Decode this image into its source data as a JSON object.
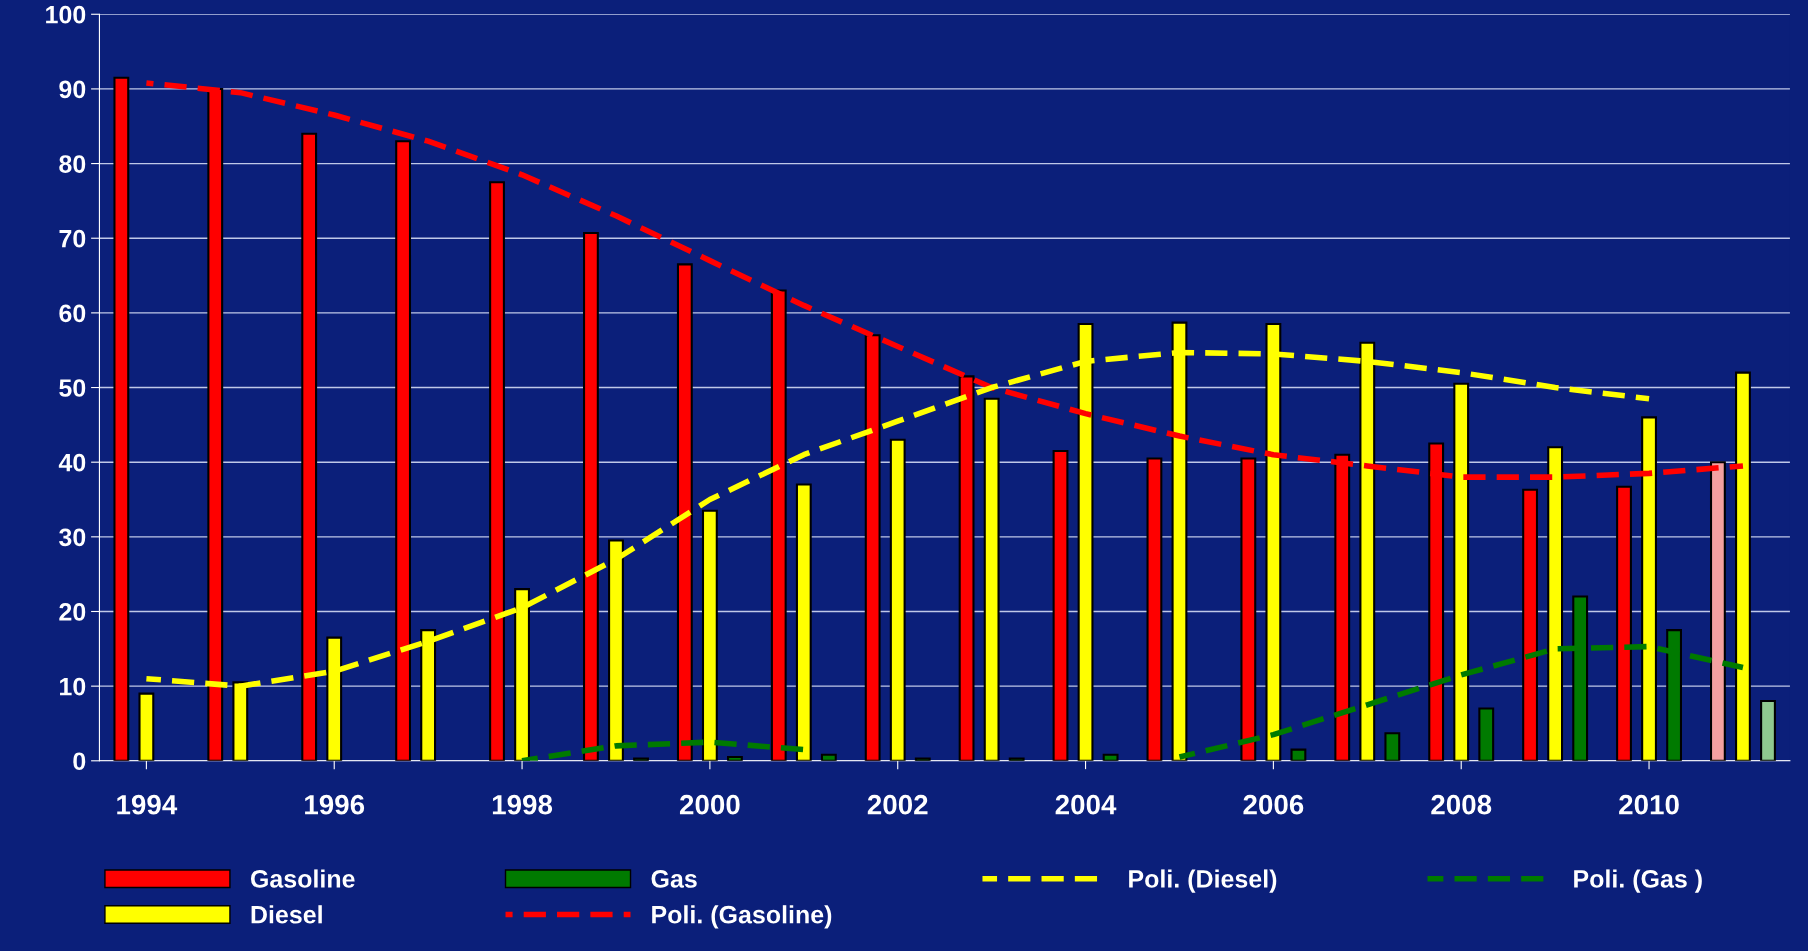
{
  "chart_data": {
    "type": "bar",
    "categories": [
      "1994",
      null,
      "1996",
      null,
      "1998",
      null,
      "2000",
      null,
      "2002",
      null,
      "2004",
      null,
      "2006",
      null,
      "2008",
      null,
      "2010",
      null
    ],
    "series": [
      {
        "name": "Gasoline",
        "color": "#ff0000",
        "colors": [
          "#ff0000",
          "#ff0000",
          "#ff0000",
          "#ff0000",
          "#ff0000",
          "#ff0000",
          "#ff0000",
          "#ff0000",
          "#ff0000",
          "#ff0000",
          "#ff0000",
          "#ff0000",
          "#ff0000",
          "#ff0000",
          "#ff0000",
          "#ff0000",
          "#ff0000",
          "#f4a0a0"
        ],
        "values": [
          91.5,
          90,
          84,
          83,
          77.5,
          70.7,
          66.5,
          63,
          57,
          51.5,
          41.5,
          40.5,
          40.5,
          41,
          42.5,
          36.3,
          36.7,
          40
        ]
      },
      {
        "name": "Diesel",
        "color": "#ffff00",
        "values": [
          9,
          10.5,
          16.5,
          17.5,
          23,
          29.5,
          33.5,
          37,
          43,
          48.5,
          58.5,
          58.7,
          58.5,
          56,
          50.5,
          42,
          46,
          52
        ]
      },
      {
        "name": "Gas",
        "color": "#007a00",
        "colors": [
          "#007a00",
          "#007a00",
          "#007a00",
          "#007a00",
          "#007a00",
          "#007a00",
          "#007a00",
          "#007a00",
          "#007a00",
          "#007a00",
          "#007a00",
          "#007a00",
          "#007a00",
          "#007a00",
          "#007a00",
          "#007a00",
          "#007a00",
          "#8fc98f"
        ],
        "values": [
          null,
          null,
          null,
          null,
          null,
          0.3,
          0.5,
          0.8,
          0.3,
          0.3,
          0.8,
          null,
          1.5,
          3.7,
          7,
          22,
          17.5,
          8
        ]
      },
      {
        "name": "Poli. (Gasoline)",
        "type": "line",
        "line_style": "dashed",
        "color": "#ff0000",
        "values": [
          90.8,
          89.5,
          86.5,
          83,
          78.5,
          73,
          67,
          61,
          55.5,
          50,
          46.5,
          43.5,
          41,
          39.5,
          38,
          38,
          38.5,
          39.5
        ]
      },
      {
        "name": "Poli. (Diesel)",
        "type": "line",
        "line_style": "dashed",
        "color": "#ffff00",
        "values": [
          11,
          10,
          12,
          16,
          20.5,
          27,
          35,
          41,
          45.5,
          50,
          53.5,
          54.7,
          54.5,
          53.5,
          52,
          50,
          48.5,
          null
        ]
      },
      {
        "name": "Poli. (Gas )",
        "type": "line",
        "line_style": "dashed",
        "color": "#007a00",
        "values": [
          null,
          null,
          null,
          null,
          0,
          2,
          2.5,
          1.5,
          null,
          null,
          null,
          0.5,
          3.5,
          7.5,
          11.5,
          15,
          15.3,
          12.5
        ]
      }
    ],
    "ylim": [
      0,
      100
    ],
    "yticks": [
      0,
      10,
      20,
      30,
      40,
      50,
      60,
      70,
      80,
      90,
      100
    ],
    "grid": "y",
    "legend": "bottom"
  }
}
